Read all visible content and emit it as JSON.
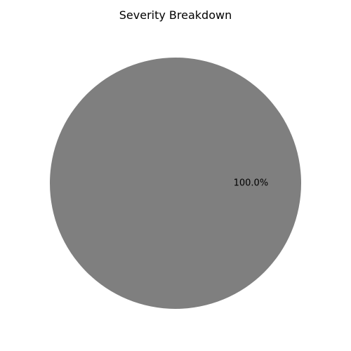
{
  "chart_data": {
    "type": "pie",
    "title": "Severity Breakdown",
    "slices": [
      {
        "label": "",
        "value": 100.0,
        "percent_label": "100.0%",
        "color": "#7f7f7f"
      }
    ],
    "legend": "none"
  }
}
